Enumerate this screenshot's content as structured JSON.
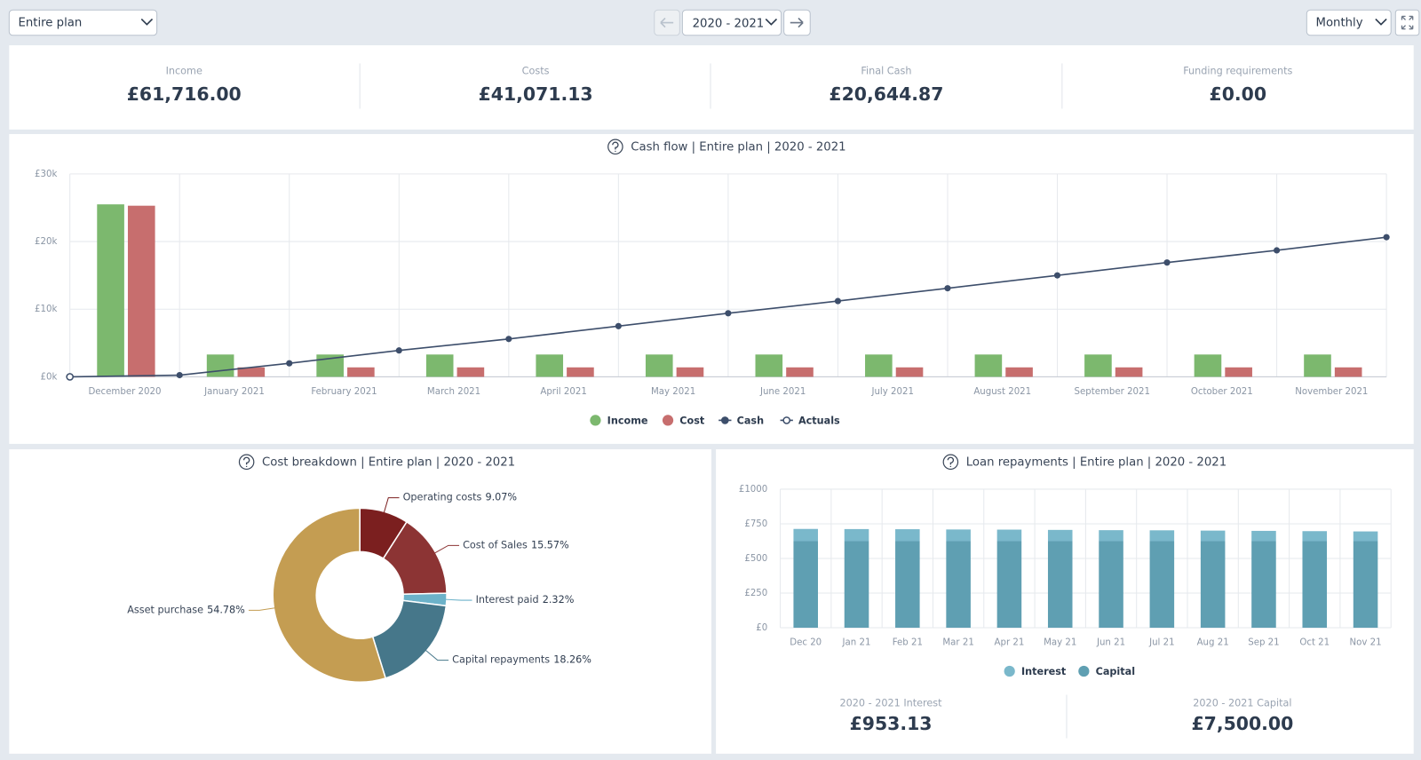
{
  "toolbar": {
    "scope": "Entire plan",
    "period": "2020 - 2021",
    "interval": "Monthly"
  },
  "summary": [
    {
      "label": "Income",
      "value": "£61,716.00"
    },
    {
      "label": "Costs",
      "value": "£41,071.13"
    },
    {
      "label": "Final Cash",
      "value": "£20,644.87"
    },
    {
      "label": "Funding requirements",
      "value": "£0.00"
    }
  ],
  "chart_data": [
    {
      "type": "combo",
      "title": "Cash flow | Entire plan | 2020 - 2021",
      "categories": [
        "December 2020",
        "January 2021",
        "February 2021",
        "March 2021",
        "April 2021",
        "May 2021",
        "June 2021",
        "July 2021",
        "August 2021",
        "September 2021",
        "October 2021",
        "November 2021"
      ],
      "series": [
        {
          "name": "Income",
          "color": "#7cb86e",
          "type": "bar",
          "values": [
            25500,
            3300,
            3300,
            3300,
            3300,
            3300,
            3300,
            3300,
            3300,
            3300,
            3300,
            3300
          ]
        },
        {
          "name": "Cost",
          "color": "#c76e6e",
          "type": "bar",
          "values": [
            25300,
            1400,
            1400,
            1400,
            1400,
            1400,
            1400,
            1400,
            1400,
            1400,
            1400,
            1400
          ]
        },
        {
          "name": "Cash",
          "color": "#3d4e6b",
          "type": "line",
          "values": [
            250,
            2000,
            3900,
            5600,
            7500,
            9400,
            11200,
            13100,
            15000,
            16900,
            18700,
            20644.87
          ]
        },
        {
          "name": "Actuals",
          "color": "#3d4e6b",
          "type": "marker",
          "values": [
            0,
            null,
            null,
            null,
            null,
            null,
            null,
            null,
            null,
            null,
            null,
            null
          ]
        }
      ],
      "ylim": [
        0,
        30000
      ],
      "yticks": [
        {
          "value": 0,
          "label": "£0k"
        },
        {
          "value": 10000,
          "label": "£10k"
        },
        {
          "value": 20000,
          "label": "£20k"
        },
        {
          "value": 30000,
          "label": "£30k"
        }
      ],
      "grid": true,
      "legend": "bottom"
    },
    {
      "type": "donut",
      "title": "Cost breakdown | Entire plan | 2020 - 2021",
      "categories": [
        "Operating costs",
        "Cost of Sales",
        "Interest paid",
        "Capital repayments",
        "Asset purchase"
      ],
      "values": [
        9.07,
        15.57,
        2.32,
        18.26,
        54.78
      ],
      "value_labels": [
        "9.07%",
        "15.57%",
        "2.32%",
        "18.26%",
        "54.78%"
      ],
      "colors": [
        "#7b1f1f",
        "#8c3434",
        "#6cb2c9",
        "#46778a",
        "#c49d52"
      ]
    },
    {
      "type": "stacked_bar",
      "title": "Loan repayments | Entire plan | 2020 - 2021",
      "categories": [
        "Dec 20",
        "Jan 21",
        "Feb 21",
        "Mar 21",
        "Apr 21",
        "May 21",
        "Jun 21",
        "Jul 21",
        "Aug 21",
        "Sep 21",
        "Oct 21",
        "Nov 21"
      ],
      "series": [
        {
          "name": "Interest",
          "color": "#7ab8cb",
          "values": [
            88,
            87,
            86,
            84,
            83,
            81,
            79,
            78,
            76,
            74,
            72,
            70
          ]
        },
        {
          "name": "Capital",
          "color": "#5f9fb2",
          "values": [
            625,
            625,
            625,
            625,
            625,
            625,
            625,
            625,
            625,
            625,
            625,
            625
          ]
        }
      ],
      "ylim": [
        0,
        1000
      ],
      "yticks": [
        {
          "value": 0,
          "label": "£0"
        },
        {
          "value": 250,
          "label": "£250"
        },
        {
          "value": 500,
          "label": "£500"
        },
        {
          "value": 750,
          "label": "£750"
        },
        {
          "value": 1000,
          "label": "£1000"
        }
      ],
      "grid": true,
      "legend": "bottom"
    }
  ],
  "loan_summary": [
    {
      "label": "2020 - 2021 Interest",
      "value": "£953.13"
    },
    {
      "label": "2020 - 2021 Capital",
      "value": "£7,500.00"
    }
  ]
}
